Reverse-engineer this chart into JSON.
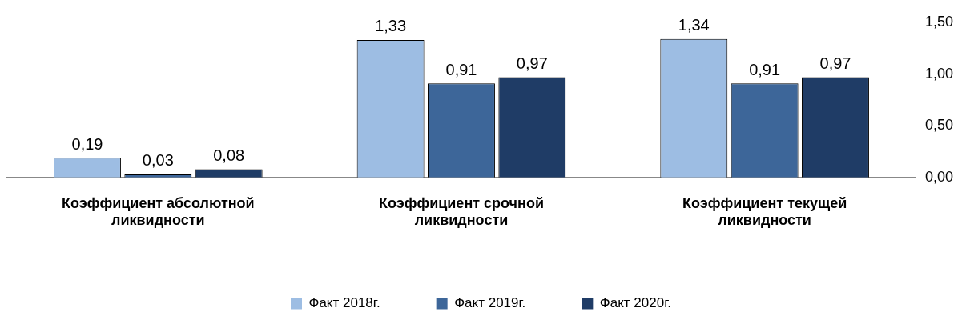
{
  "chart_data": {
    "type": "bar",
    "categories": [
      "Коэффициент абсолютной ликвидности",
      "Коэффициент срочной ликвидности",
      "Коэффициент текущей ликвидности"
    ],
    "series": [
      {
        "name": "Факт 2018г.",
        "color": "#9dbde3",
        "values": [
          0.19,
          1.33,
          1.34
        ],
        "value_labels": [
          "0,19",
          "1,33",
          "1,34"
        ]
      },
      {
        "name": "Факт 2019г.",
        "color": "#3d6699",
        "values": [
          0.03,
          0.91,
          0.91
        ],
        "value_labels": [
          "0,03",
          "0,91",
          "0,91"
        ]
      },
      {
        "name": "Факт 2020г.",
        "color": "#1f3c66",
        "values": [
          0.08,
          0.97,
          0.97
        ],
        "value_labels": [
          "0,08",
          "0,97",
          "0,97"
        ]
      }
    ],
    "ylim": [
      0,
      1.5
    ],
    "yticks": [
      {
        "value": 0,
        "label": "0,00"
      },
      {
        "value": 0.5,
        "label": "0,50"
      },
      {
        "value": 1,
        "label": "1,00"
      },
      {
        "value": 1.5,
        "label": "1,50"
      }
    ],
    "grid": false,
    "legend": "bottom"
  }
}
